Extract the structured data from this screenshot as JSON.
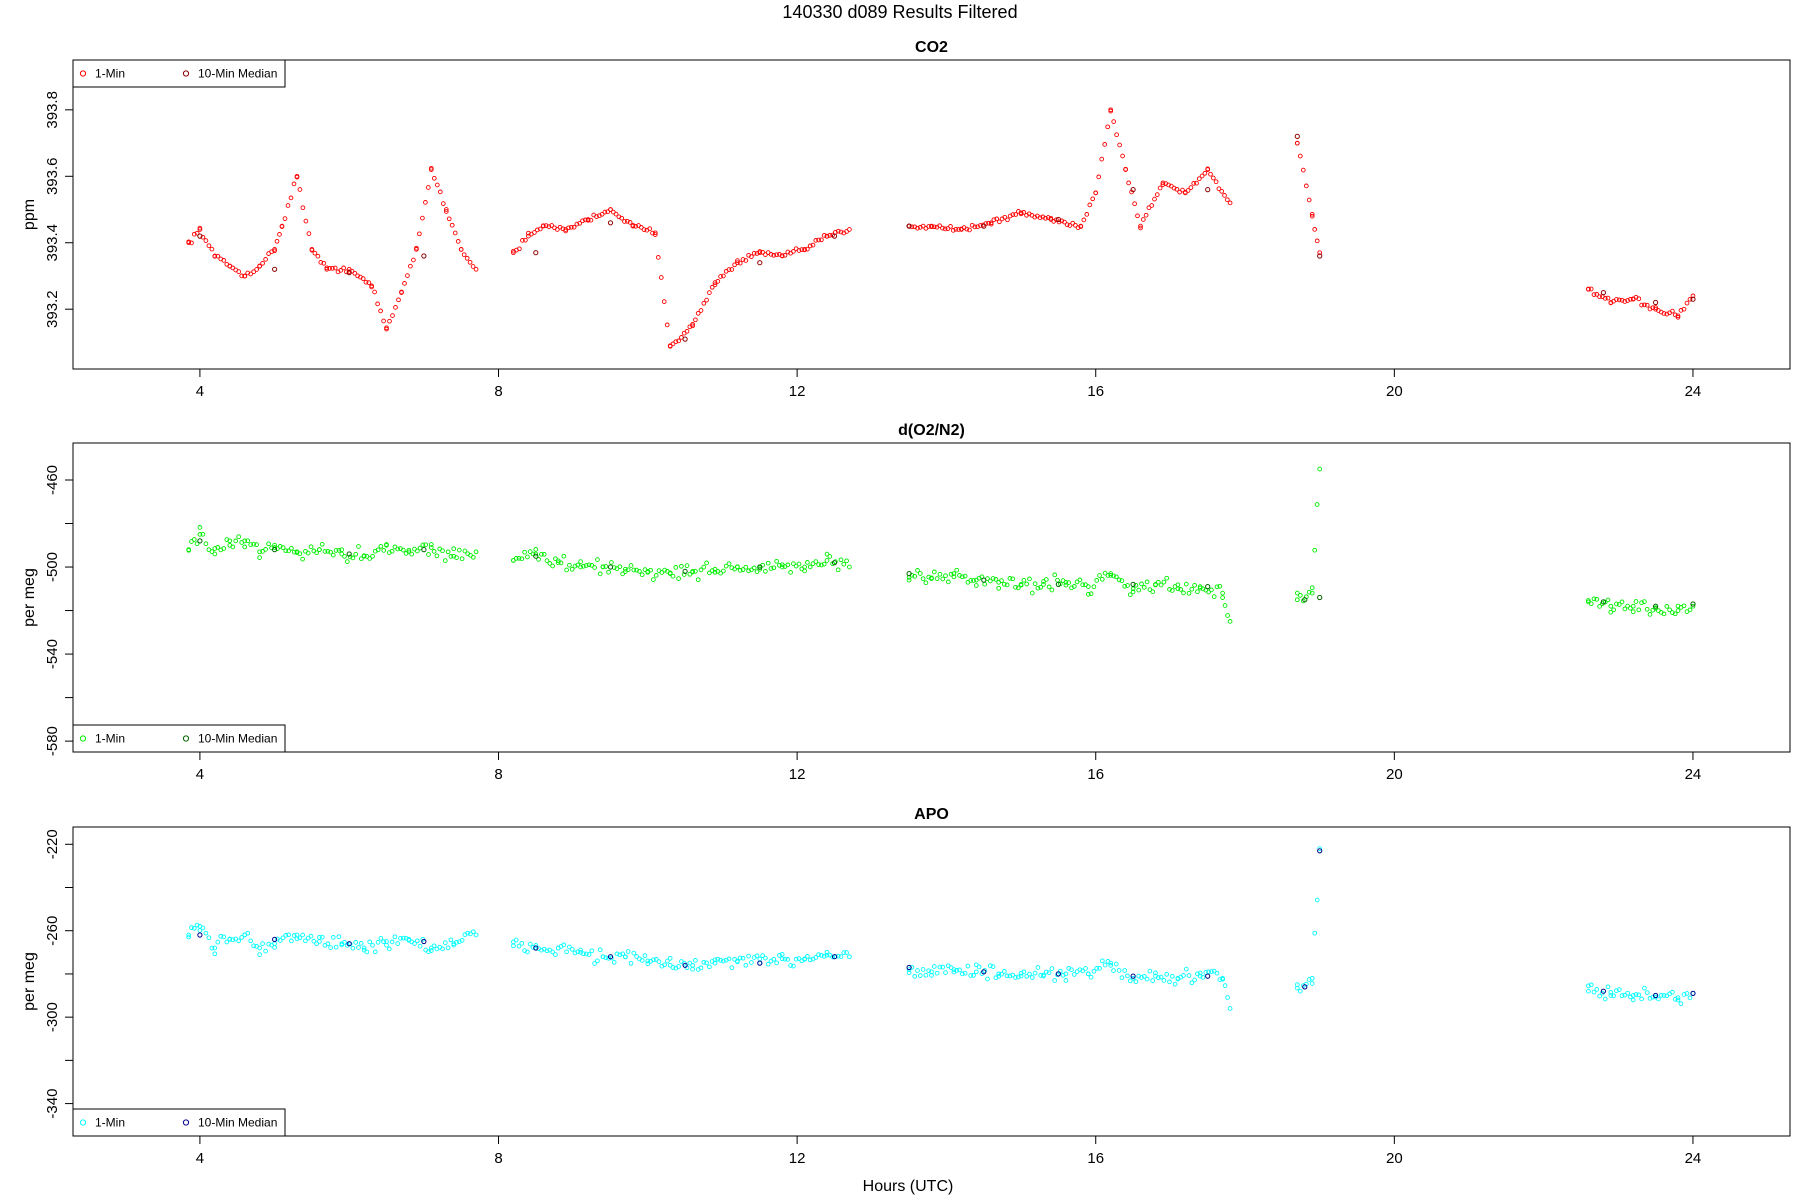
{
  "figure": {
    "title": "140330    d089    Results Filtered",
    "xlabel": "Hours (UTC)"
  },
  "chart_data": [
    {
      "type": "scatter",
      "title": "CO2",
      "xlabel": "",
      "ylabel": "ppm",
      "xlim": [
        2.3,
        25.3
      ],
      "ylim": [
        393.02,
        393.95
      ],
      "xticks": [
        4,
        8,
        12,
        16,
        20,
        24
      ],
      "yticks": [
        393.2,
        393.4,
        393.6,
        393.8
      ],
      "ytick_labels": [
        "393.2",
        "393.4",
        "393.6",
        "393.8"
      ],
      "legend": {
        "position": "top-left",
        "entries": [
          "1-Min",
          "10-Min Median"
        ]
      },
      "colors": {
        "one_min": "#ff0000",
        "median": "#8b0000"
      },
      "series": [
        {
          "name": "1-Min",
          "x": [
            3.85,
            4.0,
            4.2,
            4.4,
            4.6,
            4.8,
            5.0,
            5.1,
            5.3,
            5.5,
            5.7,
            6.0,
            6.3,
            6.5,
            6.7,
            6.9,
            7.1,
            7.3,
            7.5,
            7.7,
            8.2,
            8.4,
            8.6,
            8.9,
            9.2,
            9.5,
            9.8,
            10.1,
            10.3,
            10.6,
            10.9,
            11.2,
            11.5,
            11.8,
            12.1,
            12.4,
            12.7,
            13.5,
            13.8,
            14.2,
            14.6,
            15.0,
            15.4,
            15.8,
            16.0,
            16.2,
            16.4,
            16.6,
            16.9,
            17.2,
            17.5,
            17.8,
            18.7,
            18.9,
            19.0,
            22.6,
            22.9,
            23.2,
            23.5,
            23.8,
            24.0
          ],
          "values": [
            393.4,
            393.44,
            393.36,
            393.33,
            393.3,
            393.33,
            393.38,
            393.45,
            393.6,
            393.38,
            393.32,
            393.32,
            393.27,
            393.14,
            393.25,
            393.38,
            393.62,
            393.5,
            393.38,
            393.32,
            393.37,
            393.42,
            393.45,
            393.44,
            393.47,
            393.5,
            393.45,
            393.43,
            393.09,
            393.15,
            393.28,
            393.34,
            393.37,
            393.36,
            393.38,
            393.42,
            393.44,
            393.45,
            393.45,
            393.44,
            393.46,
            393.49,
            393.47,
            393.45,
            393.55,
            393.8,
            393.62,
            393.45,
            393.58,
            393.55,
            393.62,
            393.52,
            393.7,
            393.48,
            393.37,
            393.26,
            393.22,
            393.23,
            393.2,
            393.18,
            393.24
          ]
        },
        {
          "name": "10-Min Median",
          "x": [
            4.0,
            5.0,
            6.0,
            7.0,
            8.5,
            9.5,
            10.5,
            11.5,
            12.5,
            13.5,
            14.5,
            15.5,
            16.5,
            17.5,
            18.7,
            19.0,
            22.8,
            23.5,
            24.0
          ],
          "values": [
            393.42,
            393.32,
            393.31,
            393.36,
            393.37,
            393.46,
            393.11,
            393.34,
            393.42,
            393.45,
            393.45,
            393.47,
            393.56,
            393.56,
            393.72,
            393.36,
            393.25,
            393.22,
            393.23
          ]
        }
      ]
    },
    {
      "type": "scatter",
      "title": "d(O2/N2)",
      "xlabel": "",
      "ylabel": "per meg",
      "xlim": [
        2.3,
        25.3
      ],
      "ylim": [
        -585,
        -443
      ],
      "xticks": [
        4,
        8,
        12,
        16,
        20,
        24
      ],
      "yticks": [
        -460,
        -480,
        -500,
        -520,
        -540,
        -560,
        -580
      ],
      "ytick_labels": [
        "-460",
        "",
        "-500",
        "",
        "-540",
        "",
        "-580"
      ],
      "legend": {
        "position": "bottom-left",
        "entries": [
          "1-Min",
          "10-Min Median"
        ]
      },
      "colors": {
        "one_min": "#00ee00",
        "median": "#006400"
      },
      "series": [
        {
          "name": "1-Min",
          "x": [
            3.85,
            4.0,
            4.2,
            4.4,
            4.6,
            4.8,
            5.0,
            5.3,
            5.6,
            5.9,
            6.2,
            6.5,
            6.8,
            7.1,
            7.4,
            7.7,
            8.2,
            8.5,
            8.8,
            9.1,
            9.4,
            9.7,
            10.0,
            10.3,
            10.6,
            10.9,
            11.2,
            11.5,
            11.8,
            12.1,
            12.4,
            12.7,
            13.5,
            13.8,
            14.1,
            14.4,
            14.7,
            15.0,
            15.3,
            15.6,
            15.9,
            16.2,
            16.5,
            16.8,
            17.1,
            17.4,
            17.7,
            17.8,
            18.7,
            18.9,
            19.0,
            22.6,
            22.9,
            23.2,
            23.5,
            23.8,
            24.0
          ],
          "values": [
            -492,
            -485,
            -494,
            -490,
            -488,
            -493,
            -491,
            -493,
            -492,
            -494,
            -495,
            -490,
            -493,
            -491,
            -495,
            -493,
            -497,
            -494,
            -498,
            -500,
            -500,
            -501,
            -502,
            -503,
            -502,
            -501,
            -500,
            -501,
            -500,
            -500,
            -497,
            -500,
            -506,
            -505,
            -503,
            -506,
            -507,
            -508,
            -508,
            -507,
            -509,
            -503,
            -510,
            -508,
            -510,
            -509,
            -512,
            -525,
            -515,
            -512,
            -455,
            -516,
            -518,
            -518,
            -519,
            -520,
            -518
          ]
        },
        {
          "name": "10-Min Median",
          "x": [
            4.0,
            5.0,
            6.0,
            7.0,
            8.5,
            9.5,
            10.5,
            11.5,
            12.5,
            13.5,
            14.5,
            15.5,
            16.5,
            17.5,
            18.8,
            19.0,
            22.8,
            23.5,
            24.0
          ],
          "values": [
            -488,
            -492,
            -494,
            -492,
            -495,
            -500,
            -502,
            -500,
            -498,
            -503,
            -506,
            -508,
            -508,
            -509,
            -515,
            -514,
            -516,
            -518,
            -517
          ]
        }
      ]
    },
    {
      "type": "scatter",
      "title": "APO",
      "xlabel": "",
      "ylabel": "per meg",
      "xlim": [
        2.3,
        25.3
      ],
      "ylim": [
        -355,
        -212
      ],
      "xticks": [
        4,
        8,
        12,
        16,
        20,
        24
      ],
      "yticks": [
        -220,
        -240,
        -260,
        -280,
        -300,
        -320,
        -340
      ],
      "ytick_labels": [
        "-220",
        "",
        "-260",
        "",
        "-300",
        "",
        "-340"
      ],
      "legend": {
        "position": "bottom-left",
        "entries": [
          "1-Min",
          "10-Min Median"
        ]
      },
      "colors": {
        "one_min": "#00ffff",
        "median": "#00008b"
      },
      "series": [
        {
          "name": "1-Min",
          "x": [
            3.85,
            4.0,
            4.2,
            4.4,
            4.6,
            4.8,
            5.0,
            5.3,
            5.6,
            5.9,
            6.2,
            6.5,
            6.8,
            7.1,
            7.4,
            7.7,
            8.2,
            8.5,
            8.8,
            9.1,
            9.4,
            9.7,
            10.0,
            10.3,
            10.6,
            10.9,
            11.2,
            11.5,
            11.8,
            12.1,
            12.4,
            12.7,
            13.5,
            13.8,
            14.1,
            14.4,
            14.7,
            15.0,
            15.3,
            15.6,
            15.9,
            16.2,
            16.5,
            16.8,
            17.1,
            17.4,
            17.7,
            17.8,
            18.7,
            18.9,
            19.0,
            22.6,
            22.9,
            23.2,
            23.5,
            23.8,
            24.0
          ],
          "values": [
            -262,
            -258,
            -268,
            -264,
            -262,
            -268,
            -266,
            -262,
            -265,
            -266,
            -268,
            -265,
            -264,
            -268,
            -266,
            -262,
            -267,
            -268,
            -268,
            -270,
            -272,
            -272,
            -274,
            -276,
            -276,
            -275,
            -274,
            -275,
            -273,
            -273,
            -270,
            -272,
            -278,
            -279,
            -278,
            -279,
            -280,
            -281,
            -281,
            -280,
            -280,
            -275,
            -282,
            -281,
            -282,
            -281,
            -282,
            -296,
            -285,
            -282,
            -222,
            -288,
            -290,
            -290,
            -290,
            -291,
            -289
          ]
        },
        {
          "name": "10-Min Median",
          "x": [
            4.0,
            5.0,
            6.0,
            7.0,
            8.5,
            9.5,
            10.5,
            11.5,
            12.5,
            13.5,
            14.5,
            15.5,
            16.5,
            17.5,
            18.8,
            19.0,
            22.8,
            23.5,
            24.0
          ],
          "values": [
            -262,
            -264,
            -266,
            -265,
            -268,
            -272,
            -276,
            -275,
            -272,
            -277,
            -279,
            -280,
            -281,
            -281,
            -286,
            -223,
            -288,
            -290,
            -289
          ]
        }
      ]
    }
  ]
}
